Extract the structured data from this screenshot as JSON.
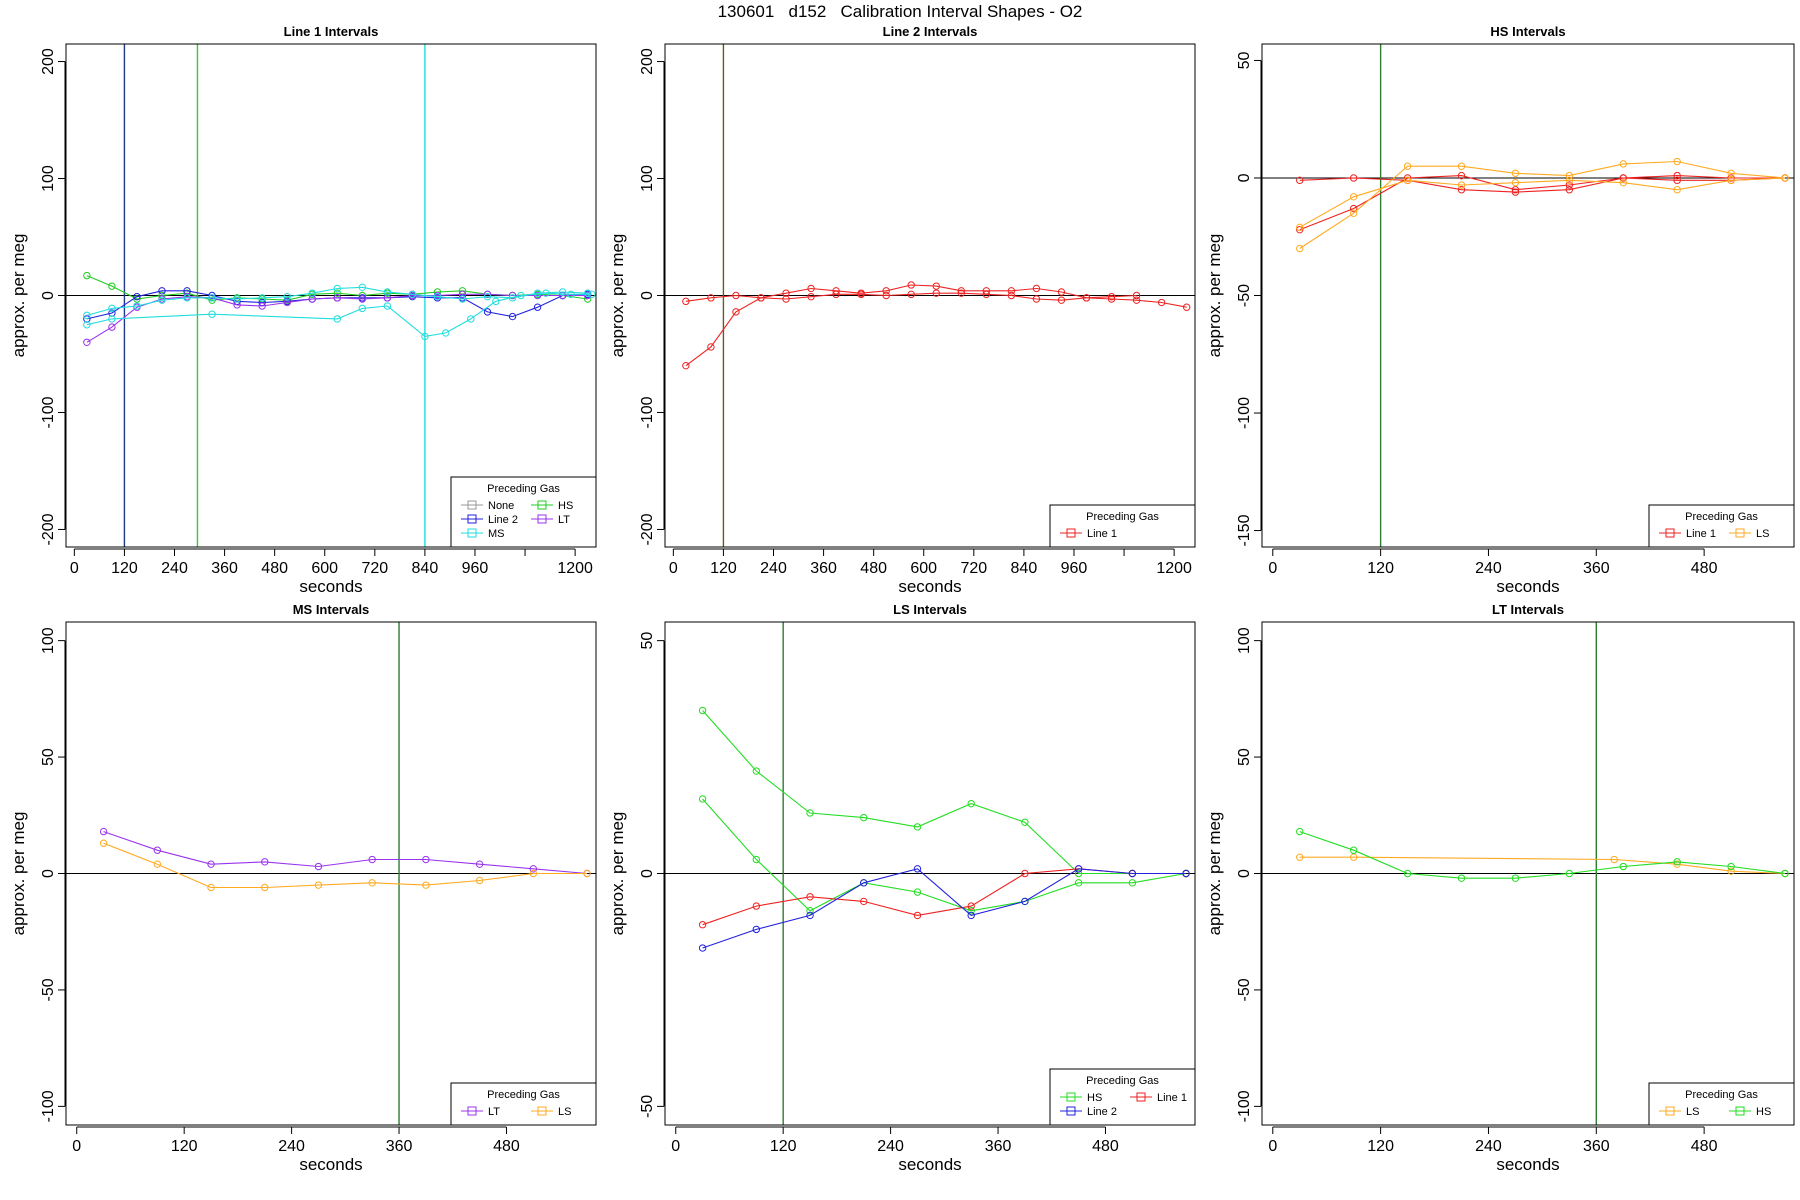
{
  "figure_title": "130601   d152   Calibration Interval Shapes - O2",
  "chart_data": [
    {
      "type": "line",
      "title": "Line 1 Intervals",
      "xlabel": "seconds",
      "ylabel": "approx. per meg",
      "xlim": [
        -20,
        1250
      ],
      "ylim": [
        -215,
        215
      ],
      "xticks": [
        0,
        120,
        240,
        360,
        480,
        600,
        720,
        840,
        960,
        1080,
        1200
      ],
      "xtick_labels": [
        "0",
        "120",
        "240",
        "360",
        "480",
        "600",
        "720",
        "840",
        "960",
        "",
        "1200"
      ],
      "yticks": [
        -200,
        -100,
        0,
        100,
        200
      ],
      "vlines": [
        {
          "x": 120,
          "color": "#1f3a8a"
        },
        {
          "x": 295,
          "color": "#33cc33"
        },
        {
          "x": 840,
          "color": "#22dddd"
        }
      ],
      "legend": {
        "title": "Preceding Gas",
        "position": "bottom-right",
        "entries": [
          {
            "label": "None",
            "color": "#9a9a9a"
          },
          {
            "label": "HS",
            "color": "#22cc22"
          },
          {
            "label": "Line 2",
            "color": "#2222dd"
          },
          {
            "label": "LT",
            "color": "#9933ee"
          },
          {
            "label": "MS",
            "color": "#22dddd"
          }
        ]
      },
      "series": [
        {
          "name": "HS",
          "color": "#22cc22",
          "x": [
            30,
            90,
            150,
            210,
            270,
            330,
            390,
            450,
            510,
            570,
            630,
            690,
            750,
            810,
            870,
            930,
            990,
            1050,
            1110,
            1170,
            1230
          ],
          "y": [
            17,
            8,
            -3,
            0,
            2,
            -4,
            -2,
            -3,
            -4,
            1,
            2,
            0,
            2,
            1,
            3,
            4,
            1,
            0,
            1,
            0,
            -3
          ]
        },
        {
          "name": "Line 2",
          "color": "#2222dd",
          "x": [
            30,
            90,
            150,
            210,
            270,
            330,
            390,
            450,
            510,
            570,
            630,
            690,
            750,
            810,
            870,
            930,
            990,
            1050,
            1110,
            1170,
            1230
          ],
          "y": [
            -20,
            -15,
            -1,
            4,
            4,
            0,
            -5,
            -6,
            -5,
            -3,
            -2,
            -2,
            -2,
            -1,
            -2,
            -2,
            -14,
            -18,
            -10,
            0,
            1
          ]
        },
        {
          "name": "LT",
          "color": "#9933ee",
          "x": [
            30,
            90,
            150,
            210,
            270,
            330,
            390,
            450,
            510,
            570,
            630,
            690,
            750,
            810,
            870,
            930,
            990,
            1050,
            1110,
            1170,
            1230
          ],
          "y": [
            -40,
            -27,
            -10,
            -3,
            -1,
            -2,
            -8,
            -9,
            -6,
            -3,
            -2,
            -3,
            -2,
            0,
            0,
            1,
            1,
            0,
            0,
            0,
            0
          ]
        },
        {
          "name": "MS",
          "color": "#22dddd",
          "x": [
            30,
            90,
            150,
            210,
            270,
            330,
            390,
            450,
            510,
            570,
            630,
            690,
            750,
            810,
            870,
            930,
            990,
            1050,
            1110,
            1170,
            1230
          ],
          "y": [
            -17,
            -11,
            -9,
            -4,
            -2,
            -2,
            -3,
            -2,
            -1,
            2,
            6,
            7,
            3,
            1,
            -1,
            -3,
            -1,
            -2,
            2,
            3,
            2
          ]
        },
        {
          "name": "MS",
          "color": "#22dddd",
          "x": [
            30,
            90,
            330,
            630,
            690,
            750,
            840,
            890,
            950,
            1010,
            1070,
            1130,
            1190,
            1240
          ],
          "y": [
            -25,
            -20,
            -16,
            -20,
            -11,
            -9,
            -35,
            -32,
            -20,
            -5,
            0,
            2,
            1,
            1
          ]
        }
      ]
    },
    {
      "type": "line",
      "title": "Line 2 Intervals",
      "xlabel": "seconds",
      "ylabel": "approx. per meg",
      "xlim": [
        -20,
        1250
      ],
      "ylim": [
        -215,
        215
      ],
      "xticks": [
        0,
        120,
        240,
        360,
        480,
        600,
        720,
        840,
        960,
        1080,
        1200
      ],
      "xtick_labels": [
        "0",
        "120",
        "240",
        "360",
        "480",
        "600",
        "720",
        "840",
        "960",
        "",
        "1200"
      ],
      "yticks": [
        -200,
        -100,
        0,
        100,
        200
      ],
      "vlines": [
        {
          "x": 120,
          "color": "#6b5a1e"
        }
      ],
      "legend": {
        "title": "Preceding Gas",
        "position": "bottom-right",
        "entries": [
          {
            "label": "Line 1",
            "color": "#ee2222"
          }
        ]
      },
      "series": [
        {
          "name": "Line 1",
          "color": "#ee2222",
          "x": [
            30,
            90,
            150,
            210,
            270,
            330,
            390,
            450,
            510,
            570,
            630,
            690,
            750,
            810,
            870,
            930,
            990,
            1050,
            1110,
            1170,
            1230
          ],
          "y": [
            -60,
            -44,
            -14,
            -2,
            2,
            6,
            4,
            2,
            4,
            9,
            8,
            4,
            4,
            4,
            6,
            3,
            -2,
            -3,
            -4,
            -6,
            -10
          ]
        },
        {
          "name": "Line 1",
          "color": "#ee2222",
          "x": [
            30,
            90,
            150,
            210,
            270,
            330,
            390,
            450,
            510,
            570,
            630,
            690,
            750,
            810,
            870,
            930,
            990,
            1050,
            1110
          ],
          "y": [
            -5,
            -2,
            0,
            -2,
            -3,
            -1,
            1,
            1,
            0,
            1,
            2,
            2,
            1,
            0,
            -3,
            -4,
            -2,
            -1,
            0
          ]
        }
      ]
    },
    {
      "type": "line",
      "title": "HS Intervals",
      "xlabel": "seconds",
      "ylabel": "approx. per meg",
      "xlim": [
        -12,
        580
      ],
      "ylim": [
        -157,
        57
      ],
      "xticks": [
        0,
        120,
        240,
        360,
        480
      ],
      "xtick_labels": [
        "0",
        "120",
        "240",
        "360",
        "480"
      ],
      "yticks": [
        -150,
        -100,
        -50,
        0,
        50
      ],
      "vlines": [
        {
          "x": 120,
          "color": "#2e7d32"
        }
      ],
      "legend": {
        "title": "Preceding Gas",
        "position": "bottom-right",
        "entries": [
          {
            "label": "Line 1",
            "color": "#ee2222"
          },
          {
            "label": "LS",
            "color": "#ffaa22"
          }
        ]
      },
      "series": [
        {
          "name": "Line 1",
          "color": "#ee2222",
          "x": [
            30,
            90,
            150,
            210,
            270,
            330,
            390,
            450,
            510,
            570
          ],
          "y": [
            -22,
            -13,
            0,
            1,
            -5,
            -3,
            0,
            -1,
            -1,
            0
          ]
        },
        {
          "name": "Line 1",
          "color": "#ee2222",
          "x": [
            30,
            90,
            150,
            210,
            270,
            330,
            390,
            450,
            510,
            570
          ],
          "y": [
            -1,
            0,
            -1,
            -5,
            -6,
            -5,
            0,
            1,
            0,
            0
          ]
        },
        {
          "name": "LS",
          "color": "#ffaa22",
          "x": [
            30,
            90,
            150,
            210,
            270,
            330,
            390,
            450,
            510,
            570
          ],
          "y": [
            -30,
            -15,
            5,
            5,
            2,
            1,
            6,
            7,
            2,
            0
          ]
        },
        {
          "name": "LS",
          "color": "#ffaa22",
          "x": [
            30,
            90,
            150,
            210,
            270,
            330,
            390,
            450,
            510,
            570
          ],
          "y": [
            -21,
            -8,
            -1,
            -3,
            -2,
            -1,
            -2,
            -5,
            -1,
            0
          ]
        }
      ]
    },
    {
      "type": "line",
      "title": "MS Intervals",
      "xlabel": "seconds",
      "ylabel": "approx. per meg",
      "xlim": [
        -12,
        580
      ],
      "ylim": [
        -108,
        108
      ],
      "xticks": [
        0,
        120,
        240,
        360,
        480
      ],
      "xtick_labels": [
        "0",
        "120",
        "240",
        "360",
        "480"
      ],
      "yticks": [
        -100,
        -50,
        0,
        50,
        100
      ],
      "vlines": [
        {
          "x": 360,
          "color": "#2e7d32"
        }
      ],
      "legend": {
        "title": "Preceding Gas",
        "position": "bottom-right",
        "entries": [
          {
            "label": "LT",
            "color": "#9933ee"
          },
          {
            "label": "LS",
            "color": "#ffaa22"
          }
        ]
      },
      "series": [
        {
          "name": "LT",
          "color": "#9933ee",
          "x": [
            30,
            90,
            150,
            210,
            270,
            330,
            390,
            450,
            510,
            570
          ],
          "y": [
            18,
            10,
            4,
            5,
            3,
            6,
            6,
            4,
            2,
            0
          ]
        },
        {
          "name": "LS",
          "color": "#ffaa22",
          "x": [
            30,
            90,
            150,
            210,
            270,
            330,
            390,
            450,
            510,
            570
          ],
          "y": [
            13,
            4,
            -6,
            -6,
            -5,
            -4,
            -5,
            -3,
            0,
            0
          ]
        }
      ]
    },
    {
      "type": "line",
      "title": "LS Intervals",
      "xlabel": "seconds",
      "ylabel": "approx. per meg",
      "xlim": [
        -12,
        580
      ],
      "ylim": [
        -54,
        54
      ],
      "xticks": [
        0,
        120,
        240,
        360,
        480
      ],
      "xtick_labels": [
        "0",
        "120",
        "240",
        "360",
        "480"
      ],
      "yticks": [
        -50,
        0,
        50
      ],
      "vlines": [
        {
          "x": 120,
          "color": "#2e7d32"
        }
      ],
      "legend": {
        "title": "Preceding Gas",
        "position": "bottom-right",
        "entries": [
          {
            "label": "HS",
            "color": "#22dd22"
          },
          {
            "label": "Line 1",
            "color": "#ee2222"
          },
          {
            "label": "Line 2",
            "color": "#2222dd"
          }
        ]
      },
      "series": [
        {
          "name": "HS",
          "color": "#22dd22",
          "x": [
            30,
            90,
            150,
            210,
            270,
            330,
            390,
            450,
            510,
            570
          ],
          "y": [
            35,
            22,
            13,
            12,
            10,
            15,
            11,
            0,
            0,
            0
          ]
        },
        {
          "name": "HS",
          "color": "#22dd22",
          "x": [
            30,
            90,
            150,
            210,
            270,
            330,
            390,
            450,
            510,
            570
          ],
          "y": [
            16,
            3,
            -8,
            -2,
            -4,
            -8,
            -6,
            -2,
            -2,
            0
          ]
        },
        {
          "name": "Line 1",
          "color": "#ee2222",
          "x": [
            30,
            90,
            150,
            210,
            270,
            330,
            390,
            450,
            510,
            570
          ],
          "y": [
            -11,
            -7,
            -5,
            -6,
            -9,
            -7,
            0,
            1,
            0,
            0
          ]
        },
        {
          "name": "Line 2",
          "color": "#2222dd",
          "x": [
            30,
            90,
            150,
            210,
            270,
            330,
            390,
            450,
            510,
            570
          ],
          "y": [
            -16,
            -12,
            -9,
            -2,
            1,
            -9,
            -6,
            1,
            0,
            0
          ]
        }
      ]
    },
    {
      "type": "line",
      "title": "LT Intervals",
      "xlabel": "seconds",
      "ylabel": "approx. per meg",
      "xlim": [
        -12,
        580
      ],
      "ylim": [
        -108,
        108
      ],
      "xticks": [
        0,
        120,
        240,
        360,
        480
      ],
      "xtick_labels": [
        "0",
        "120",
        "240",
        "360",
        "480"
      ],
      "yticks": [
        -100,
        -50,
        0,
        50,
        100
      ],
      "vlines": [
        {
          "x": 360,
          "color": "#2e7d32"
        }
      ],
      "legend": {
        "title": "Preceding Gas",
        "position": "bottom-right",
        "entries": [
          {
            "label": "LS",
            "color": "#ffaa22"
          },
          {
            "label": "HS",
            "color": "#22dd22"
          }
        ]
      },
      "series": [
        {
          "name": "LS",
          "color": "#ffaa22",
          "x": [
            30,
            90,
            380,
            450,
            510,
            570
          ],
          "y": [
            7,
            7,
            6,
            4,
            1,
            0
          ]
        },
        {
          "name": "HS",
          "color": "#22dd22",
          "x": [
            30,
            90,
            150,
            210,
            270,
            330,
            390,
            450,
            510,
            570
          ],
          "y": [
            18,
            10,
            0,
            -2,
            -2,
            0,
            3,
            5,
            3,
            0
          ]
        }
      ]
    }
  ]
}
